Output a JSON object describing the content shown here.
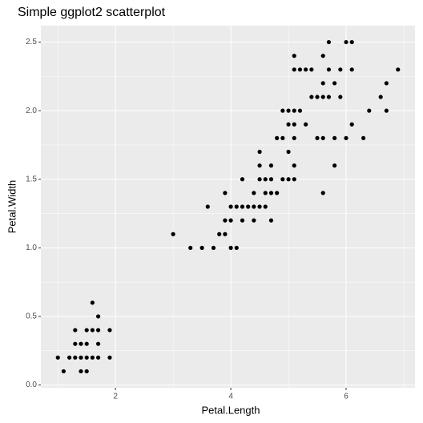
{
  "chart_data": {
    "type": "scatter",
    "title": "Simple ggplot2 scatterplot",
    "xlabel": "Petal.Length",
    "ylabel": "Petal.Width",
    "color": "#000000",
    "grid": true,
    "xlim": [
      0.705,
      7.195
    ],
    "xticks": [
      2,
      4,
      6
    ],
    "ylim": [
      -0.02,
      2.62
    ],
    "yticks": [
      {
        "value": 0,
        "label": "0.0"
      },
      0.5,
      {
        "value": 1,
        "label": "1.0"
      },
      1.5,
      {
        "value": 2,
        "label": "2.0"
      },
      2.5
    ],
    "x": [
      1.0,
      1.2,
      1.3,
      1.4,
      1.5,
      1.6,
      1.7,
      1.9,
      1.1,
      1.4,
      1.5,
      1.3,
      1.4,
      1.5,
      1.7,
      1.3,
      1.5,
      1.6,
      1.7,
      1.9,
      1.7,
      1.6,
      4.7,
      4.5,
      4.9,
      4.0,
      4.6,
      4.5,
      4.7,
      3.3,
      4.6,
      3.9,
      3.5,
      4.2,
      4.0,
      3.6,
      4.4,
      4.1,
      3.9,
      4.8,
      4.7,
      4.3,
      4.8,
      5.0,
      3.8,
      3.7,
      3.9,
      5.1,
      4.5,
      4.7,
      4.4,
      4.1,
      4.4,
      4.6,
      4.0,
      4.2,
      4.2,
      3.0,
      6.0,
      5.1,
      5.9,
      5.6,
      5.8,
      6.6,
      4.5,
      6.3,
      5.8,
      6.1,
      5.1,
      5.3,
      5.5,
      5.0,
      5.1,
      5.3,
      5.5,
      6.7,
      6.9,
      5.0,
      5.7,
      4.9,
      6.7,
      4.9,
      5.7,
      6.0,
      5.6,
      5.8,
      6.1,
      6.4,
      5.6,
      5.1,
      5.6,
      6.1,
      5.6,
      5.4,
      5.1,
      5.9,
      5.7,
      5.2,
      5.0,
      5.2,
      5.4,
      5.1
    ],
    "y": [
      0.2,
      0.2,
      0.2,
      0.2,
      0.2,
      0.2,
      0.2,
      0.2,
      0.1,
      0.1,
      0.1,
      0.3,
      0.3,
      0.3,
      0.3,
      0.4,
      0.4,
      0.4,
      0.4,
      0.4,
      0.5,
      0.6,
      1.4,
      1.5,
      1.5,
      1.3,
      1.5,
      1.3,
      1.6,
      1.0,
      1.3,
      1.4,
      1.0,
      1.5,
      1.0,
      1.3,
      1.4,
      1.0,
      1.1,
      1.8,
      1.2,
      1.3,
      1.4,
      1.7,
      1.1,
      1.0,
      1.2,
      1.6,
      1.6,
      1.5,
      1.3,
      1.3,
      1.2,
      1.4,
      1.2,
      1.3,
      1.2,
      1.1,
      2.5,
      1.9,
      2.1,
      1.8,
      2.2,
      2.1,
      1.7,
      1.8,
      1.8,
      2.5,
      2.0,
      1.9,
      2.1,
      2.0,
      2.4,
      2.3,
      1.8,
      2.2,
      2.3,
      1.5,
      2.3,
      2.0,
      2.0,
      1.8,
      2.1,
      1.8,
      2.1,
      1.6,
      1.9,
      2.0,
      2.2,
      1.5,
      1.4,
      2.3,
      2.4,
      2.1,
      2.3,
      2.3,
      2.5,
      2.3,
      1.9,
      2.0,
      2.3,
      1.8
    ]
  }
}
